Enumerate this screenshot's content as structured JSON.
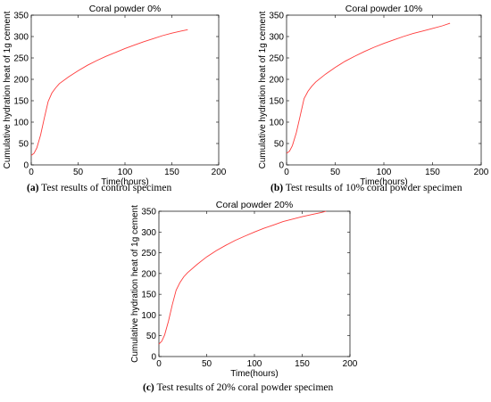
{
  "chart_data": [
    {
      "type": "line",
      "title": "Coral powder 0%",
      "xlabel": "Time(hours)",
      "ylabel": "Cumulative hydration heat of 1g cement",
      "xlim": [
        0,
        200
      ],
      "ylim": [
        0,
        350
      ],
      "xticks": [
        0,
        50,
        100,
        150,
        200
      ],
      "yticks": [
        0,
        50,
        100,
        150,
        200,
        250,
        300,
        350
      ],
      "grid": false,
      "series": [
        {
          "color": "#ff3b3b",
          "points": [
            [
              0,
              22
            ],
            [
              3,
              27
            ],
            [
              6,
              40
            ],
            [
              10,
              70
            ],
            [
              14,
              110
            ],
            [
              18,
              148
            ],
            [
              22,
              168
            ],
            [
              26,
              180
            ],
            [
              30,
              190
            ],
            [
              40,
              206
            ],
            [
              50,
              220
            ],
            [
              60,
              233
            ],
            [
              70,
              244
            ],
            [
              80,
              254
            ],
            [
              90,
              263
            ],
            [
              100,
              272
            ],
            [
              110,
              280
            ],
            [
              120,
              288
            ],
            [
              130,
              295
            ],
            [
              140,
              302
            ],
            [
              150,
              308
            ],
            [
              160,
              313
            ],
            [
              167,
              316
            ]
          ]
        }
      ],
      "caption_label": "(a)",
      "caption_text": "Test results of control specimen"
    },
    {
      "type": "line",
      "title": "Coral powder 10%",
      "xlabel": "Time(hours)",
      "ylabel": "Cumulative hydration heat of 1g cement",
      "xlim": [
        0,
        200
      ],
      "ylim": [
        0,
        350
      ],
      "xticks": [
        0,
        50,
        100,
        150,
        200
      ],
      "yticks": [
        0,
        50,
        100,
        150,
        200,
        250,
        300,
        350
      ],
      "grid": false,
      "series": [
        {
          "color": "#ff3b3b",
          "points": [
            [
              0,
              27
            ],
            [
              3,
              32
            ],
            [
              6,
              45
            ],
            [
              10,
              75
            ],
            [
              14,
              115
            ],
            [
              18,
              155
            ],
            [
              22,
              172
            ],
            [
              26,
              184
            ],
            [
              30,
              194
            ],
            [
              40,
              212
            ],
            [
              50,
              228
            ],
            [
              60,
              242
            ],
            [
              70,
              254
            ],
            [
              80,
              265
            ],
            [
              90,
              275
            ],
            [
              100,
              284
            ],
            [
              110,
              292
            ],
            [
              120,
              300
            ],
            [
              130,
              307
            ],
            [
              140,
              313
            ],
            [
              150,
              319
            ],
            [
              160,
              325
            ],
            [
              168,
              331
            ]
          ]
        }
      ],
      "caption_label": "(b)",
      "caption_text": "Test results of 10% coral powder specimen"
    },
    {
      "type": "line",
      "title": "Coral powder 20%",
      "xlabel": "Time(hours)",
      "ylabel": "Cumulative hydration heat of 1g cement",
      "xlim": [
        0,
        200
      ],
      "ylim": [
        0,
        350
      ],
      "xticks": [
        0,
        50,
        100,
        150,
        200
      ],
      "yticks": [
        0,
        50,
        100,
        150,
        200,
        250,
        300,
        350
      ],
      "grid": false,
      "series": [
        {
          "color": "#ff3b3b",
          "points": [
            [
              0,
              30
            ],
            [
              3,
              37
            ],
            [
              6,
              52
            ],
            [
              10,
              85
            ],
            [
              14,
              125
            ],
            [
              18,
              160
            ],
            [
              22,
              178
            ],
            [
              26,
              192
            ],
            [
              30,
              202
            ],
            [
              40,
              222
            ],
            [
              50,
              240
            ],
            [
              60,
              255
            ],
            [
              70,
              268
            ],
            [
              80,
              280
            ],
            [
              90,
              290
            ],
            [
              100,
              300
            ],
            [
              110,
              309
            ],
            [
              120,
              317
            ],
            [
              130,
              325
            ],
            [
              140,
              331
            ],
            [
              150,
              337
            ],
            [
              160,
              342
            ],
            [
              170,
              347
            ],
            [
              175,
              350
            ]
          ]
        }
      ],
      "caption_label": "(c)",
      "caption_text": "Test results of 20% coral powder specimen"
    }
  ]
}
